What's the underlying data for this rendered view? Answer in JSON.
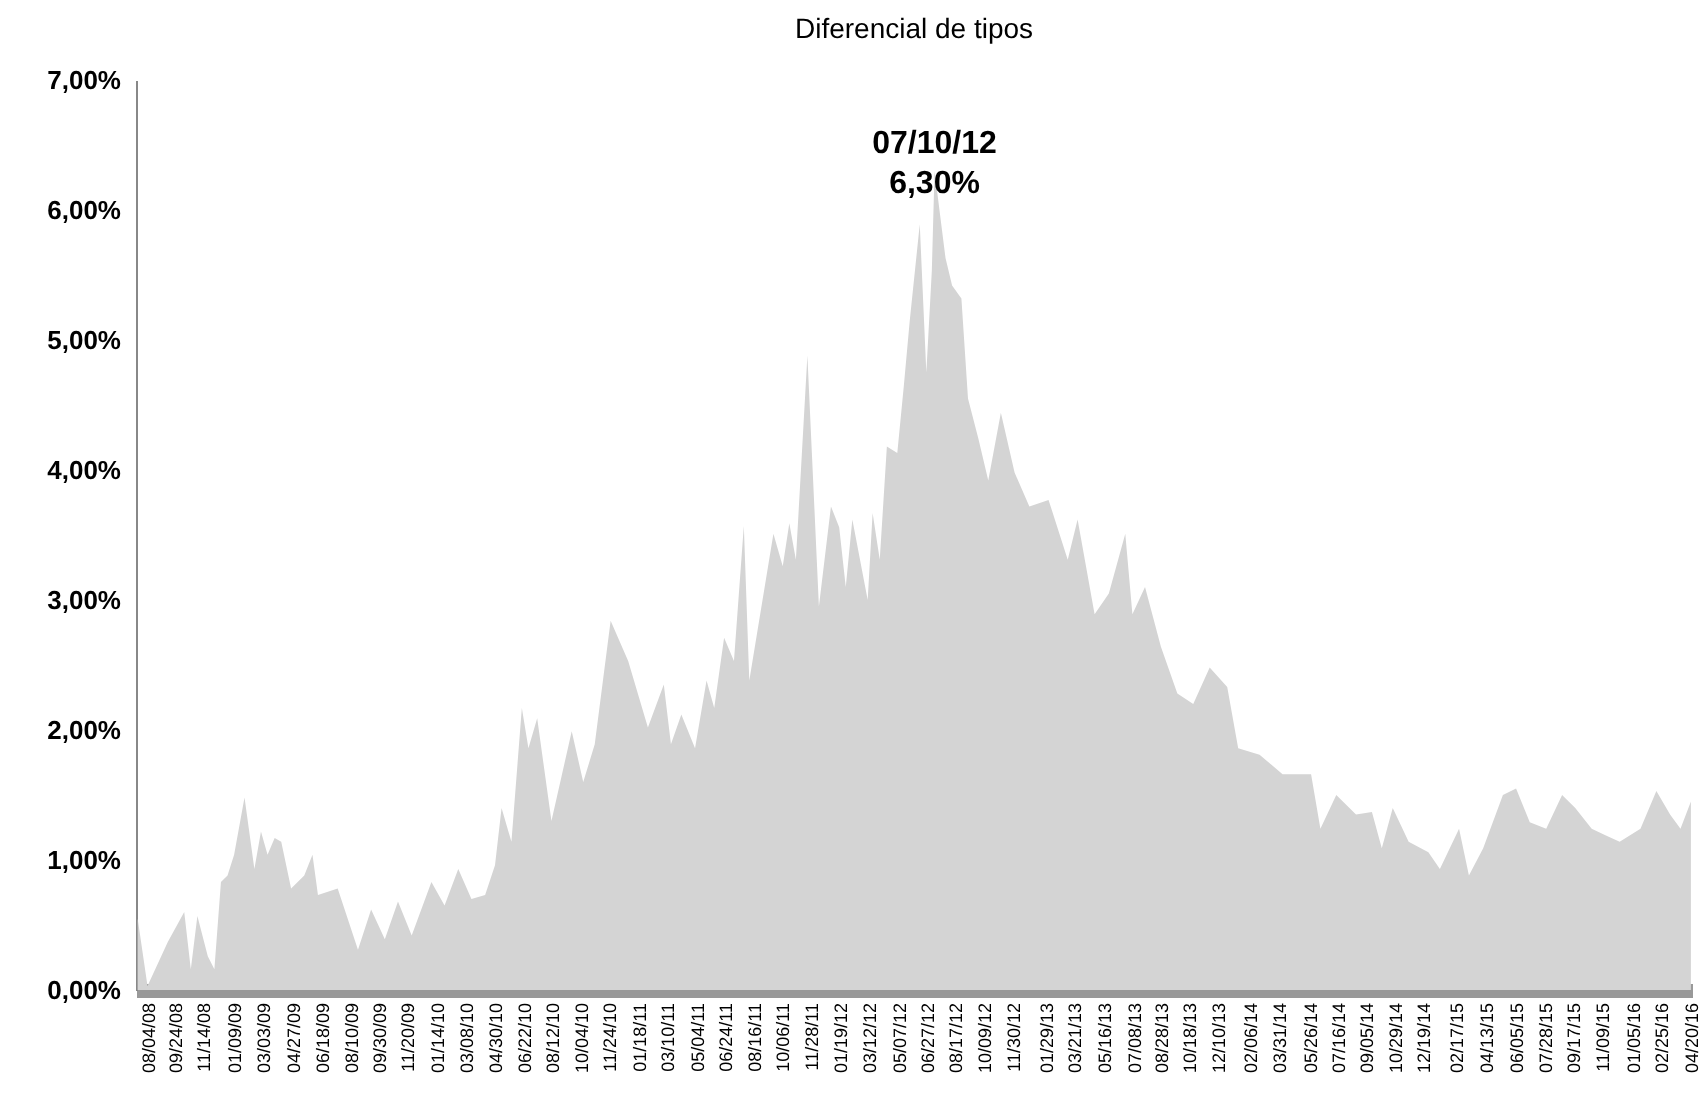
{
  "chart_data": {
    "type": "area",
    "title": "Diferencial de tipos",
    "color": "#d4d4d4",
    "x": [
      "2008-07-17",
      "2008-08-04",
      "2008-09-10",
      "2008-10-10",
      "2008-10-22",
      "2008-11-03",
      "2008-11-22",
      "2008-12-04",
      "2008-12-16",
      "2008-12-28",
      "2009-01-09",
      "2009-01-28",
      "2009-02-15",
      "2009-02-27",
      "2009-03-11",
      "2009-03-24",
      "2009-04-05",
      "2009-04-23",
      "2009-05-17",
      "2009-06-01",
      "2009-06-11",
      "2009-07-17",
      "2009-08-23",
      "2009-09-16",
      "2009-10-11",
      "2009-11-04",
      "2009-11-29",
      "2010-01-04",
      "2010-01-28",
      "2010-02-22",
      "2010-03-18",
      "2010-04-12",
      "2010-04-30",
      "2010-05-12",
      "2010-05-30",
      "2010-06-18",
      "2010-06-30",
      "2010-07-16",
      "2010-08-11",
      "2010-09-17",
      "2010-10-08",
      "2010-10-29",
      "2010-11-27",
      "2010-12-29",
      "2011-02-03",
      "2011-03-04",
      "2011-03-17",
      "2011-04-05",
      "2011-04-30",
      "2011-05-21",
      "2011-06-04",
      "2011-06-22",
      "2011-07-10",
      "2011-07-28",
      "2011-08-07",
      "2011-09-20",
      "2011-10-07",
      "2011-10-19",
      "2011-10-31",
      "2011-11-21",
      "2011-12-12",
      "2012-01-03",
      "2012-01-18",
      "2012-01-30",
      "2012-02-11",
      "2012-03-10",
      "2012-03-19",
      "2012-04-01",
      "2012-04-14",
      "2012-05-03",
      "2012-05-15",
      "2012-05-26",
      "2012-06-13",
      "2012-06-25",
      "2012-07-05",
      "2012-07-10",
      "2012-07-30",
      "2012-08-11",
      "2012-08-28",
      "2012-09-09",
      "2012-09-28",
      "2012-10-16",
      "2012-11-08",
      "2012-12-03",
      "2012-12-30",
      "2013-02-03",
      "2013-03-10",
      "2013-03-28",
      "2013-04-28",
      "2013-05-24",
      "2013-06-23",
      "2013-07-06",
      "2013-07-29",
      "2013-08-27",
      "2013-09-26",
      "2013-10-25",
      "2013-11-24",
      "2013-12-26",
      "2014-01-15",
      "2014-02-23",
      "2014-04-06",
      "2014-05-28",
      "2014-06-14",
      "2014-07-13",
      "2014-08-18",
      "2014-09-16",
      "2014-10-04",
      "2014-10-24",
      "2014-11-22",
      "2014-12-28",
      "2015-01-18",
      "2015-02-22",
      "2015-03-12",
      "2015-04-07",
      "2015-05-13",
      "2015-06-06",
      "2015-07-01",
      "2015-07-31",
      "2015-08-29",
      "2015-09-22",
      "2015-10-22",
      "2015-11-16",
      "2015-12-12",
      "2016-01-19",
      "2016-02-17",
      "2016-03-13",
      "2016-04-01",
      "2016-04-20"
    ],
    "values": [
      0.55,
      0.03,
      0.37,
      0.6,
      0.16,
      0.57,
      0.26,
      0.16,
      0.83,
      0.88,
      1.04,
      1.48,
      0.93,
      1.22,
      1.04,
      1.17,
      1.14,
      0.78,
      0.88,
      1.04,
      0.73,
      0.78,
      0.31,
      0.62,
      0.39,
      0.68,
      0.42,
      0.83,
      0.65,
      0.93,
      0.7,
      0.73,
      0.96,
      1.4,
      1.14,
      2.17,
      1.86,
      2.09,
      1.3,
      1.99,
      1.6,
      1.89,
      2.84,
      2.53,
      2.02,
      2.35,
      1.89,
      2.12,
      1.86,
      2.38,
      2.17,
      2.71,
      2.53,
      3.57,
      2.38,
      3.51,
      3.26,
      3.59,
      3.31,
      4.88,
      2.95,
      3.72,
      3.56,
      3.1,
      3.62,
      3.0,
      3.67,
      3.31,
      4.18,
      4.13,
      4.65,
      5.16,
      5.89,
      4.75,
      5.53,
      6.3,
      5.63,
      5.42,
      5.32,
      4.55,
      4.24,
      3.92,
      4.44,
      3.98,
      3.72,
      3.77,
      3.31,
      3.62,
      2.89,
      3.05,
      3.51,
      2.89,
      3.1,
      2.64,
      2.28,
      2.2,
      2.48,
      2.33,
      1.86,
      1.81,
      1.66,
      1.66,
      1.24,
      1.5,
      1.35,
      1.37,
      1.09,
      1.4,
      1.14,
      1.06,
      0.93,
      1.24,
      0.88,
      1.09,
      1.5,
      1.55,
      1.29,
      1.24,
      1.5,
      1.4,
      1.24,
      1.19,
      1.14,
      1.24,
      1.53,
      1.35,
      1.24,
      1.45
    ],
    "xlim": [
      "2008-07-14",
      "2016-04-22"
    ],
    "xticks": [
      {
        "value": "2008-08-04",
        "label": "08/04/08"
      },
      {
        "value": "2008-09-24",
        "label": "09/24/08"
      },
      {
        "value": "2008-11-14",
        "label": "11/14/08"
      },
      {
        "value": "2009-01-09",
        "label": "01/09/09"
      },
      {
        "value": "2009-03-03",
        "label": "03/03/09"
      },
      {
        "value": "2009-04-27",
        "label": "04/27/09"
      },
      {
        "value": "2009-06-18",
        "label": "06/18/09"
      },
      {
        "value": "2009-08-10",
        "label": "08/10/09"
      },
      {
        "value": "2009-09-30",
        "label": "09/30/09"
      },
      {
        "value": "2009-11-20",
        "label": "11/20/09"
      },
      {
        "value": "2010-01-14",
        "label": "01/14/10"
      },
      {
        "value": "2010-03-08",
        "label": "03/08/10"
      },
      {
        "value": "2010-04-30",
        "label": "04/30/10"
      },
      {
        "value": "2010-06-22",
        "label": "06/22/10"
      },
      {
        "value": "2010-08-12",
        "label": "08/12/10"
      },
      {
        "value": "2010-10-04",
        "label": "10/04/10"
      },
      {
        "value": "2010-11-24",
        "label": "11/24/10"
      },
      {
        "value": "2011-01-18",
        "label": "01/18/11"
      },
      {
        "value": "2011-03-10",
        "label": "03/10/11"
      },
      {
        "value": "2011-05-04",
        "label": "05/04/11"
      },
      {
        "value": "2011-06-24",
        "label": "06/24/11"
      },
      {
        "value": "2011-08-16",
        "label": "08/16/11"
      },
      {
        "value": "2011-10-06",
        "label": "10/06/11"
      },
      {
        "value": "2011-11-28",
        "label": "11/28/11"
      },
      {
        "value": "2012-01-19",
        "label": "01/19/12"
      },
      {
        "value": "2012-03-12",
        "label": "03/12/12"
      },
      {
        "value": "2012-05-07",
        "label": "05/07/12"
      },
      {
        "value": "2012-06-27",
        "label": "06/27/12"
      },
      {
        "value": "2012-08-17",
        "label": "08/17/12"
      },
      {
        "value": "2012-10-09",
        "label": "10/09/12"
      },
      {
        "value": "2012-11-30",
        "label": "11/30/12"
      },
      {
        "value": "2013-01-29",
        "label": "01/29/13"
      },
      {
        "value": "2013-03-21",
        "label": "03/21/13"
      },
      {
        "value": "2013-05-16",
        "label": "05/16/13"
      },
      {
        "value": "2013-07-08",
        "label": "07/08/13"
      },
      {
        "value": "2013-08-28",
        "label": "08/28/13"
      },
      {
        "value": "2013-10-18",
        "label": "10/18/13"
      },
      {
        "value": "2013-12-10",
        "label": "12/10/13"
      },
      {
        "value": "2014-02-06",
        "label": "02/06/14"
      },
      {
        "value": "2014-03-31",
        "label": "03/31/14"
      },
      {
        "value": "2014-05-26",
        "label": "05/26/14"
      },
      {
        "value": "2014-07-16",
        "label": "07/16/14"
      },
      {
        "value": "2014-09-05",
        "label": "09/05/14"
      },
      {
        "value": "2014-10-29",
        "label": "10/29/14"
      },
      {
        "value": "2014-12-19",
        "label": "12/19/14"
      },
      {
        "value": "2015-02-17",
        "label": "02/17/15"
      },
      {
        "value": "2015-04-13",
        "label": "04/13/15"
      },
      {
        "value": "2015-06-05",
        "label": "06/05/15"
      },
      {
        "value": "2015-07-28",
        "label": "07/28/15"
      },
      {
        "value": "2015-09-17",
        "label": "09/17/15"
      },
      {
        "value": "2015-11-09",
        "label": "11/09/15"
      },
      {
        "value": "2016-01-05",
        "label": "01/05/16"
      },
      {
        "value": "2016-02-25",
        "label": "02/25/16"
      },
      {
        "value": "2016-04-20",
        "label": "04/20/16"
      }
    ],
    "ylim": [
      0,
      7
    ],
    "yticks": [
      {
        "value": 0,
        "label": "0,00%"
      },
      {
        "value": 1,
        "label": "1,00%"
      },
      {
        "value": 2,
        "label": "2,00%"
      },
      {
        "value": 3,
        "label": "3,00%"
      },
      {
        "value": 4,
        "label": "4,00%"
      },
      {
        "value": 5,
        "label": "5,00%"
      },
      {
        "value": 6,
        "label": "6,00%"
      },
      {
        "value": 7,
        "label": "7,00%"
      }
    ],
    "annotations": [
      {
        "text": "07/10/12\n6,30%",
        "x": "2012-07-10",
        "y": 6.3
      }
    ]
  }
}
